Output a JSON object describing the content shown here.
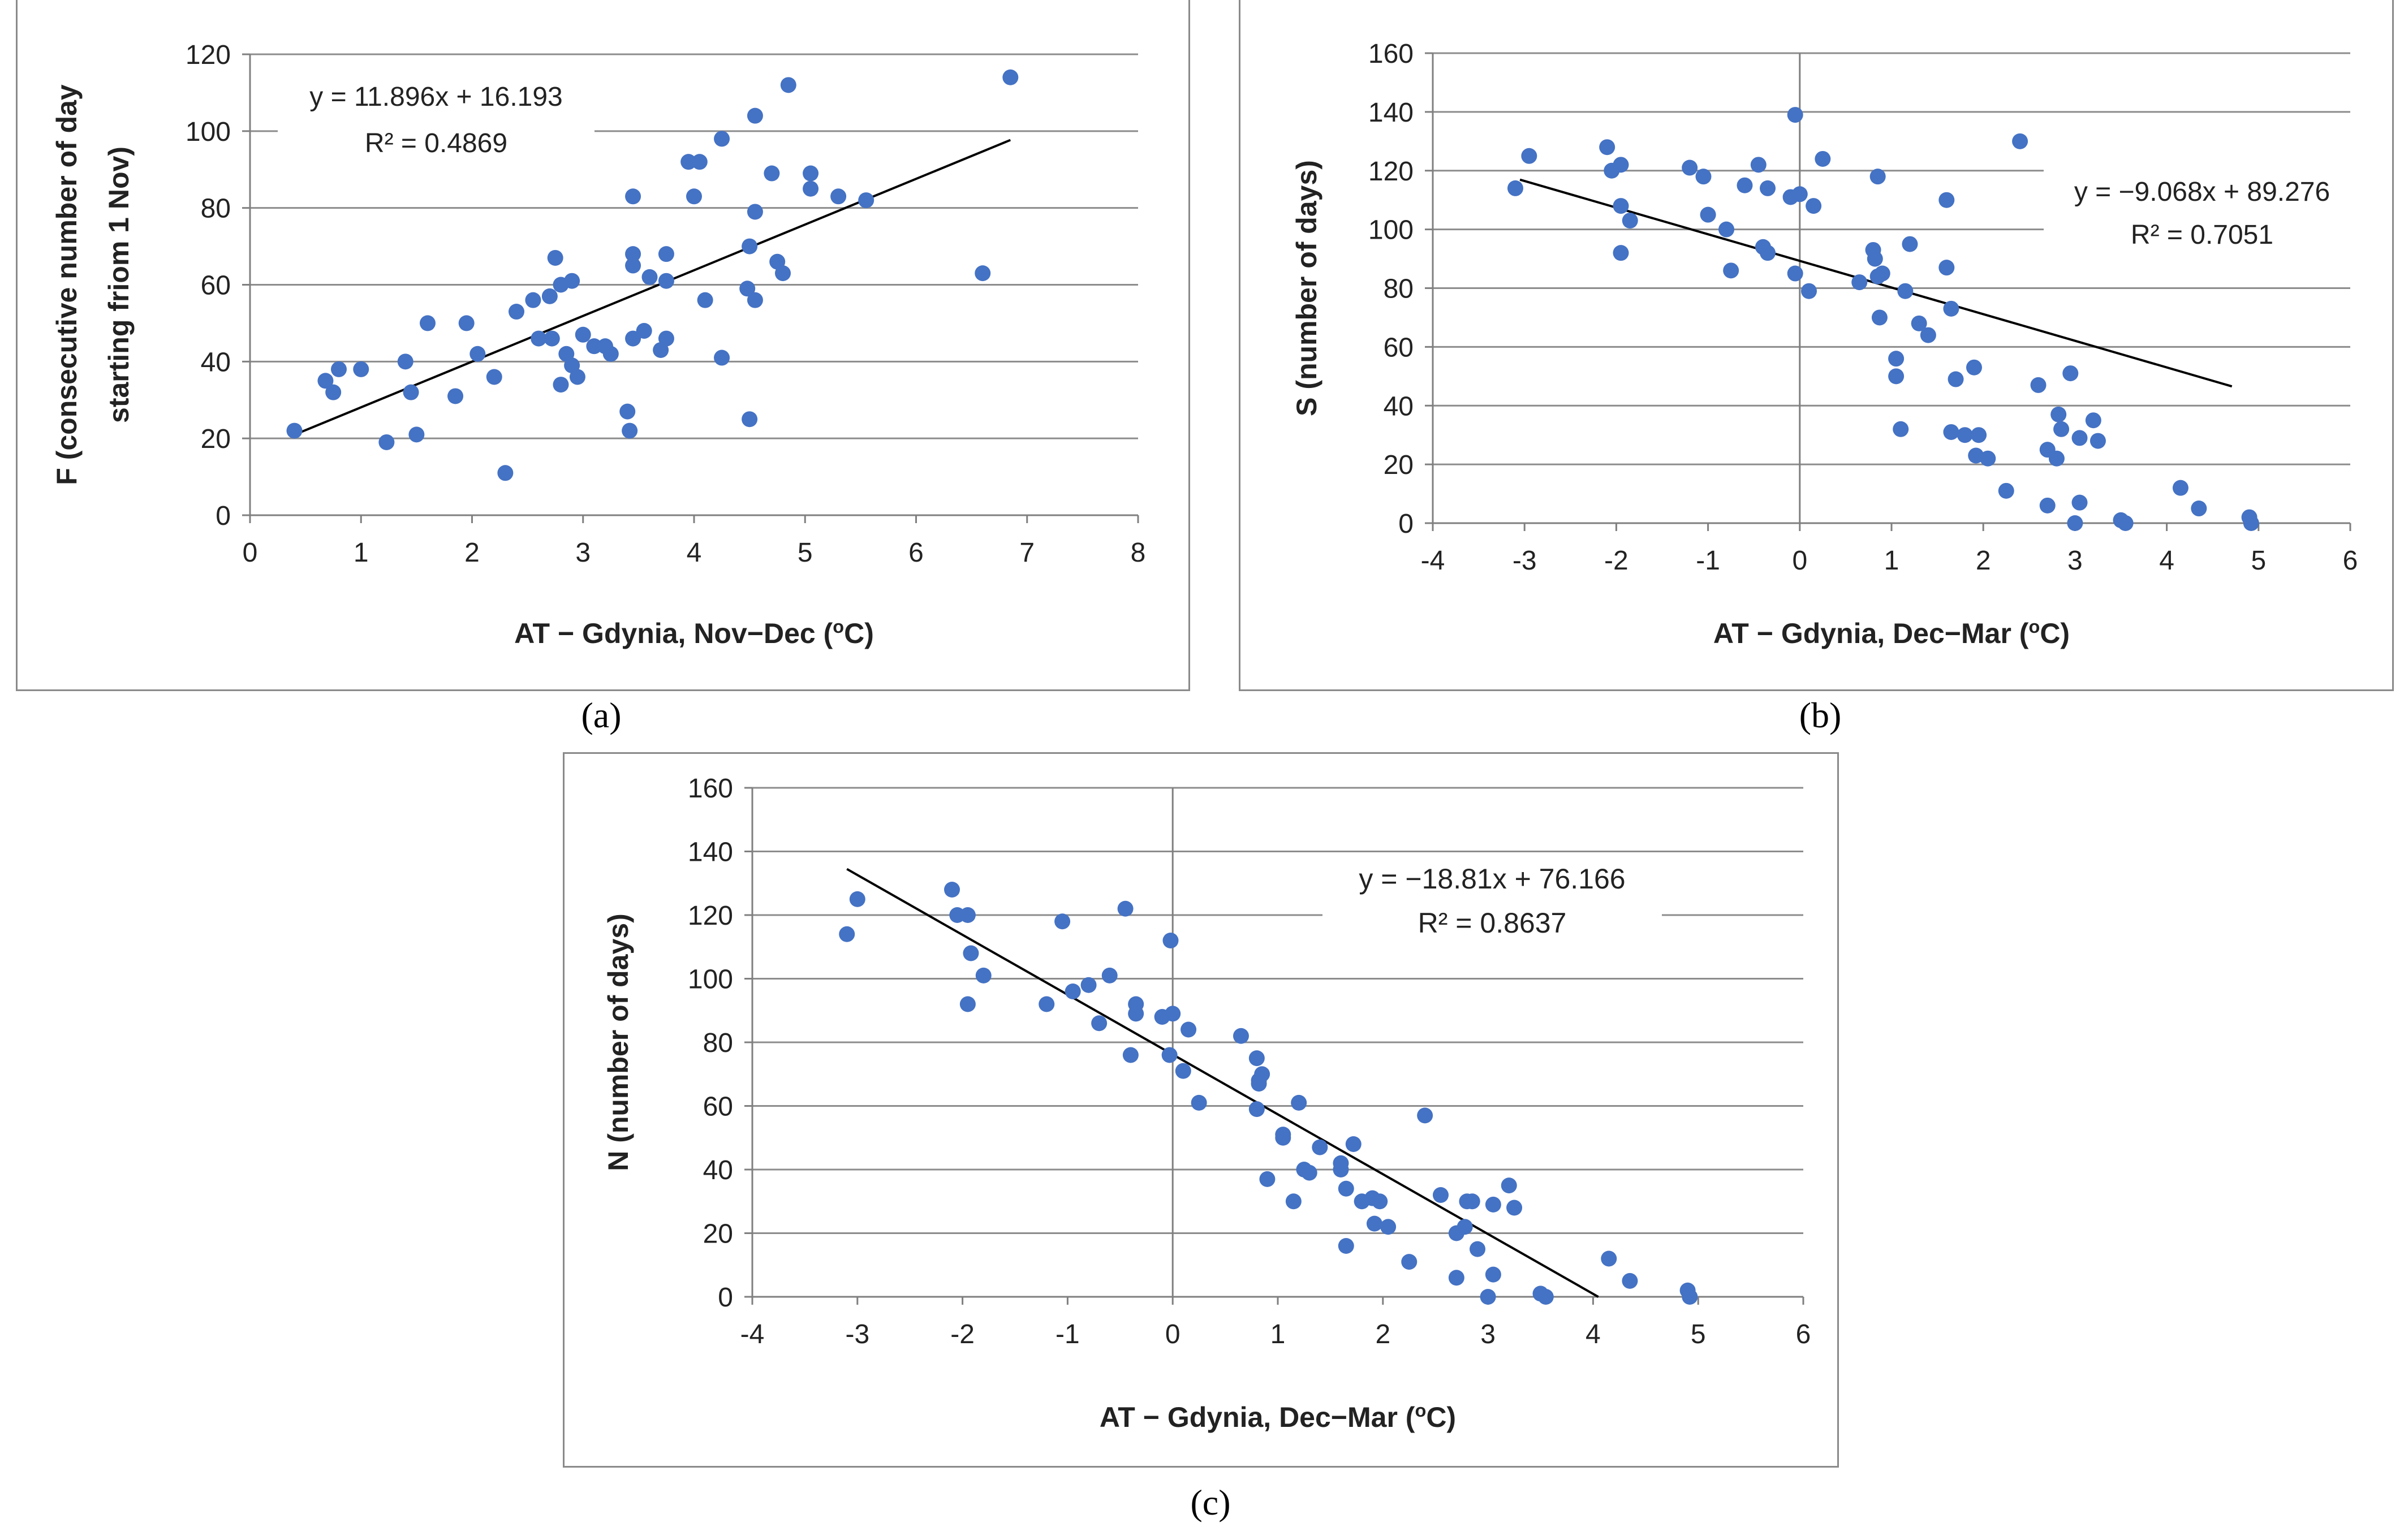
{
  "colors": {
    "point": "#4472C4",
    "grid": "#8C8C8C",
    "axis": "#7F7F7F",
    "trend": "#000000",
    "text": "#222222"
  },
  "chart_data": [
    {
      "id": "a",
      "type": "scatter",
      "caption": "(a)",
      "xlabel": "AT − Gdynia, Nov−Dec (",
      "xlabel_sup": "o",
      "xlabel_end": "C)",
      "ylabel": "F (consecutive number of day",
      "ylabel2": "starting friom 1 Nov)",
      "xlim": [
        0,
        8
      ],
      "xstep": 1,
      "ylim": [
        0,
        120
      ],
      "ystep": 20,
      "grid": true,
      "xticks": [
        "0",
        "1",
        "2",
        "3",
        "4",
        "5",
        "6",
        "7",
        "8"
      ],
      "yticks": [
        "0",
        "20",
        "40",
        "60",
        "80",
        "100",
        "120"
      ],
      "equation": "y = 11.896x + 16.193",
      "r2": "R² = 0.4869",
      "trend": {
        "slope": 11.896,
        "intercept": 16.193,
        "x0": 0.4,
        "x1": 6.85
      },
      "points": [
        [
          0.4,
          22
        ],
        [
          0.68,
          35
        ],
        [
          0.75,
          32
        ],
        [
          0.8,
          38
        ],
        [
          1.0,
          38
        ],
        [
          1.23,
          19
        ],
        [
          1.4,
          40
        ],
        [
          1.45,
          32
        ],
        [
          1.5,
          21
        ],
        [
          1.6,
          50
        ],
        [
          1.85,
          31
        ],
        [
          1.95,
          50
        ],
        [
          2.05,
          42
        ],
        [
          2.2,
          36
        ],
        [
          2.3,
          11
        ],
        [
          2.4,
          53
        ],
        [
          2.55,
          56
        ],
        [
          2.6,
          46
        ],
        [
          2.7,
          57
        ],
        [
          2.72,
          46
        ],
        [
          2.75,
          67
        ],
        [
          2.8,
          34
        ],
        [
          2.8,
          60
        ],
        [
          2.85,
          42
        ],
        [
          2.9,
          61
        ],
        [
          2.9,
          39
        ],
        [
          2.95,
          36
        ],
        [
          3.0,
          47
        ],
        [
          3.1,
          44
        ],
        [
          3.2,
          44
        ],
        [
          3.25,
          42
        ],
        [
          3.4,
          27
        ],
        [
          3.42,
          22
        ],
        [
          3.45,
          83
        ],
        [
          3.45,
          68
        ],
        [
          3.45,
          65
        ],
        [
          3.45,
          46
        ],
        [
          3.55,
          48
        ],
        [
          3.6,
          62
        ],
        [
          3.7,
          43
        ],
        [
          3.75,
          46
        ],
        [
          3.75,
          61
        ],
        [
          3.75,
          68
        ],
        [
          3.95,
          92
        ],
        [
          4.0,
          83
        ],
        [
          4.05,
          92
        ],
        [
          4.1,
          56
        ],
        [
          4.25,
          98
        ],
        [
          4.25,
          41
        ],
        [
          4.48,
          59
        ],
        [
          4.5,
          70
        ],
        [
          4.5,
          25
        ],
        [
          4.55,
          104
        ],
        [
          4.55,
          79
        ],
        [
          4.55,
          56
        ],
        [
          4.7,
          89
        ],
        [
          4.75,
          66
        ],
        [
          4.8,
          63
        ],
        [
          4.85,
          112
        ],
        [
          5.05,
          89
        ],
        [
          5.05,
          85
        ],
        [
          5.3,
          83
        ],
        [
          5.55,
          82
        ],
        [
          6.6,
          63
        ],
        [
          6.85,
          114
        ]
      ]
    },
    {
      "id": "b",
      "type": "scatter",
      "caption": "(b)",
      "xlabel": "AT − Gdynia, Dec−Mar (",
      "xlabel_sup": "o",
      "xlabel_end": "C)",
      "ylabel": "S (number of days)",
      "xlim": [
        -4,
        6
      ],
      "xstep": 1,
      "ylim": [
        0,
        160
      ],
      "ystep": 20,
      "grid": true,
      "xticks": [
        "-4",
        "-3",
        "-2",
        "-1",
        "0",
        "1",
        "2",
        "3",
        "4",
        "5",
        "6"
      ],
      "yticks": [
        "0",
        "20",
        "40",
        "60",
        "80",
        "100",
        "120",
        "140",
        "160"
      ],
      "equation": "y = −9.068x + 89.276",
      "r2": "R² = 0.7051",
      "trend": {
        "slope": -9.068,
        "intercept": 89.276,
        "x0": -3.05,
        "x1": 4.71
      },
      "points": [
        [
          -3.1,
          114
        ],
        [
          -2.95,
          125
        ],
        [
          -2.1,
          128
        ],
        [
          -2.05,
          120
        ],
        [
          -1.95,
          122
        ],
        [
          -1.95,
          108
        ],
        [
          -1.95,
          92
        ],
        [
          -1.85,
          103
        ],
        [
          -1.2,
          121
        ],
        [
          -1.05,
          118
        ],
        [
          -1.0,
          105
        ],
        [
          -0.8,
          100
        ],
        [
          -0.75,
          86
        ],
        [
          -0.6,
          115
        ],
        [
          -0.45,
          122
        ],
        [
          -0.4,
          94
        ],
        [
          -0.35,
          114
        ],
        [
          -0.35,
          92
        ],
        [
          -0.1,
          111
        ],
        [
          -0.05,
          139
        ],
        [
          -0.05,
          85
        ],
        [
          0.0,
          112
        ],
        [
          0.1,
          79
        ],
        [
          0.15,
          108
        ],
        [
          0.25,
          124
        ],
        [
          0.65,
          82
        ],
        [
          0.8,
          93
        ],
        [
          0.82,
          90
        ],
        [
          0.85,
          118
        ],
        [
          0.85,
          84
        ],
        [
          0.87,
          70
        ],
        [
          0.9,
          85
        ],
        [
          1.05,
          56
        ],
        [
          1.05,
          50
        ],
        [
          1.1,
          32
        ],
        [
          1.15,
          79
        ],
        [
          1.2,
          95
        ],
        [
          1.3,
          68
        ],
        [
          1.4,
          64
        ],
        [
          1.6,
          110
        ],
        [
          1.6,
          87
        ],
        [
          1.65,
          73
        ],
        [
          1.65,
          31
        ],
        [
          1.7,
          49
        ],
        [
          1.8,
          30
        ],
        [
          1.9,
          53
        ],
        [
          1.92,
          23
        ],
        [
          1.95,
          30
        ],
        [
          2.05,
          22
        ],
        [
          2.25,
          11
        ],
        [
          2.4,
          130
        ],
        [
          2.6,
          47
        ],
        [
          2.7,
          25
        ],
        [
          2.7,
          6
        ],
        [
          2.8,
          22
        ],
        [
          2.82,
          37
        ],
        [
          2.85,
          32
        ],
        [
          2.95,
          51
        ],
        [
          3.0,
          0
        ],
        [
          3.05,
          29
        ],
        [
          3.05,
          7
        ],
        [
          3.2,
          35
        ],
        [
          3.25,
          28
        ],
        [
          3.5,
          1
        ],
        [
          3.55,
          0
        ],
        [
          4.15,
          12
        ],
        [
          4.35,
          5
        ],
        [
          4.9,
          2
        ],
        [
          4.92,
          0
        ]
      ]
    },
    {
      "id": "c",
      "type": "scatter",
      "caption": "(c)",
      "xlabel": "AT − Gdynia, Dec−Mar (",
      "xlabel_sup": "o",
      "xlabel_end": "C)",
      "ylabel": "N (number of days)",
      "xlim": [
        -4,
        6
      ],
      "xstep": 1,
      "ylim": [
        0,
        160
      ],
      "ystep": 20,
      "grid": true,
      "xticks": [
        "-4",
        "-3",
        "-2",
        "-1",
        "0",
        "1",
        "2",
        "3",
        "4",
        "5",
        "6"
      ],
      "yticks": [
        "0",
        "20",
        "40",
        "60",
        "80",
        "100",
        "120",
        "140",
        "160"
      ],
      "equation": "y = −18.81x + 76.166",
      "r2": "R² = 0.8637",
      "trend": {
        "slope": -18.81,
        "intercept": 76.166,
        "x0": -3.1,
        "x1": 4.05
      },
      "points": [
        [
          -3.1,
          114
        ],
        [
          -3.0,
          125
        ],
        [
          -2.1,
          128
        ],
        [
          -2.05,
          120
        ],
        [
          -1.95,
          120
        ],
        [
          -1.92,
          108
        ],
        [
          -1.95,
          92
        ],
        [
          -1.8,
          101
        ],
        [
          -1.2,
          92
        ],
        [
          -1.05,
          118
        ],
        [
          -0.95,
          96
        ],
        [
          -0.8,
          98
        ],
        [
          -0.7,
          86
        ],
        [
          -0.6,
          101
        ],
        [
          -0.45,
          122
        ],
        [
          -0.4,
          76
        ],
        [
          -0.35,
          92
        ],
        [
          -0.35,
          89
        ],
        [
          -0.1,
          88
        ],
        [
          -0.02,
          112
        ],
        [
          0.0,
          89
        ],
        [
          -0.03,
          76
        ],
        [
          0.1,
          71
        ],
        [
          0.15,
          84
        ],
        [
          0.25,
          61
        ],
        [
          0.65,
          82
        ],
        [
          0.8,
          75
        ],
        [
          0.82,
          68
        ],
        [
          0.82,
          67
        ],
        [
          0.85,
          70
        ],
        [
          0.8,
          59
        ],
        [
          0.9,
          37
        ],
        [
          1.05,
          51
        ],
        [
          1.05,
          50
        ],
        [
          1.15,
          30
        ],
        [
          1.2,
          61
        ],
        [
          1.25,
          40
        ],
        [
          1.3,
          39
        ],
        [
          1.4,
          47
        ],
        [
          1.6,
          42
        ],
        [
          1.6,
          40
        ],
        [
          1.65,
          34
        ],
        [
          1.65,
          16
        ],
        [
          1.72,
          48
        ],
        [
          1.8,
          30
        ],
        [
          1.9,
          31
        ],
        [
          1.92,
          23
        ],
        [
          1.97,
          30
        ],
        [
          2.05,
          22
        ],
        [
          2.25,
          11
        ],
        [
          2.4,
          57
        ],
        [
          2.55,
          32
        ],
        [
          2.7,
          20
        ],
        [
          2.7,
          6
        ],
        [
          2.78,
          22
        ],
        [
          2.8,
          30
        ],
        [
          2.85,
          30
        ],
        [
          2.9,
          15
        ],
        [
          3.0,
          0
        ],
        [
          3.05,
          29
        ],
        [
          3.05,
          7
        ],
        [
          3.2,
          35
        ],
        [
          3.25,
          28
        ],
        [
          3.5,
          1
        ],
        [
          3.55,
          0
        ],
        [
          4.15,
          12
        ],
        [
          4.35,
          5
        ],
        [
          4.9,
          2
        ],
        [
          4.92,
          0
        ]
      ]
    }
  ]
}
